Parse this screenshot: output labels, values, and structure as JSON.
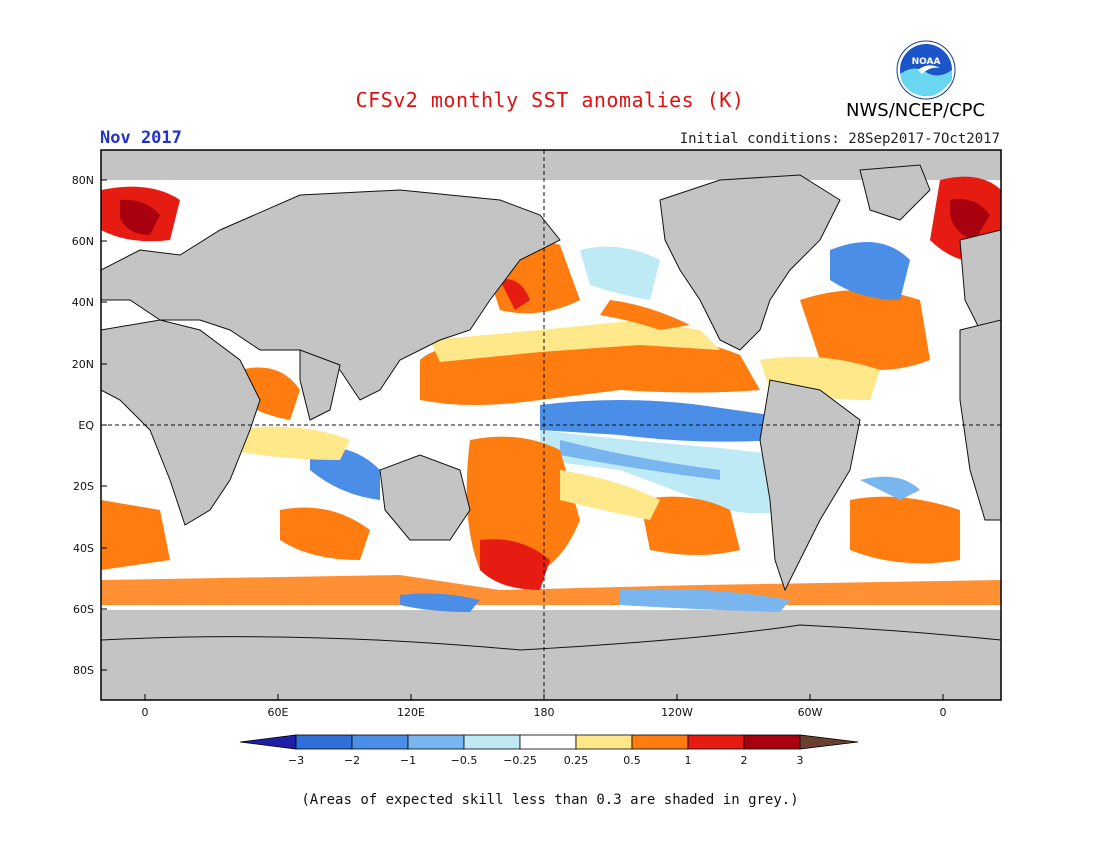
{
  "header": {
    "title": "CFSv2 monthly SST anomalies (K)",
    "org": "NWS/NCEP/CPC",
    "month": "Nov 2017",
    "initial_conditions": "Initial conditions: 28Sep2017-7Oct2017",
    "logo_text": "NOAA"
  },
  "map": {
    "lat_labels": [
      "80N",
      "60N",
      "40N",
      "20N",
      "EQ",
      "20S",
      "40S",
      "60S",
      "80S"
    ],
    "lon_labels": [
      "0",
      "60E",
      "120E",
      "180",
      "120W",
      "60W",
      "0"
    ]
  },
  "colorbar": {
    "labels": [
      "−3",
      "−2",
      "−1",
      "−0.5",
      "−0.25",
      "0.25",
      "0.5",
      "1",
      "2",
      "3"
    ],
    "colors": [
      "#1e1ea8",
      "#2f6fd9",
      "#4a8ee8",
      "#79b6f0",
      "#bdeaf5",
      "#ffffff",
      "#ffe88a",
      "#ff7c10",
      "#e61b12",
      "#a8000e",
      "#6b3f2f"
    ]
  },
  "colors": {
    "land": "#c4c4c4",
    "coast": "#111111"
  },
  "footer": {
    "skill_note": "(Areas of expected skill less than 0.3 are shaded in grey.)"
  }
}
